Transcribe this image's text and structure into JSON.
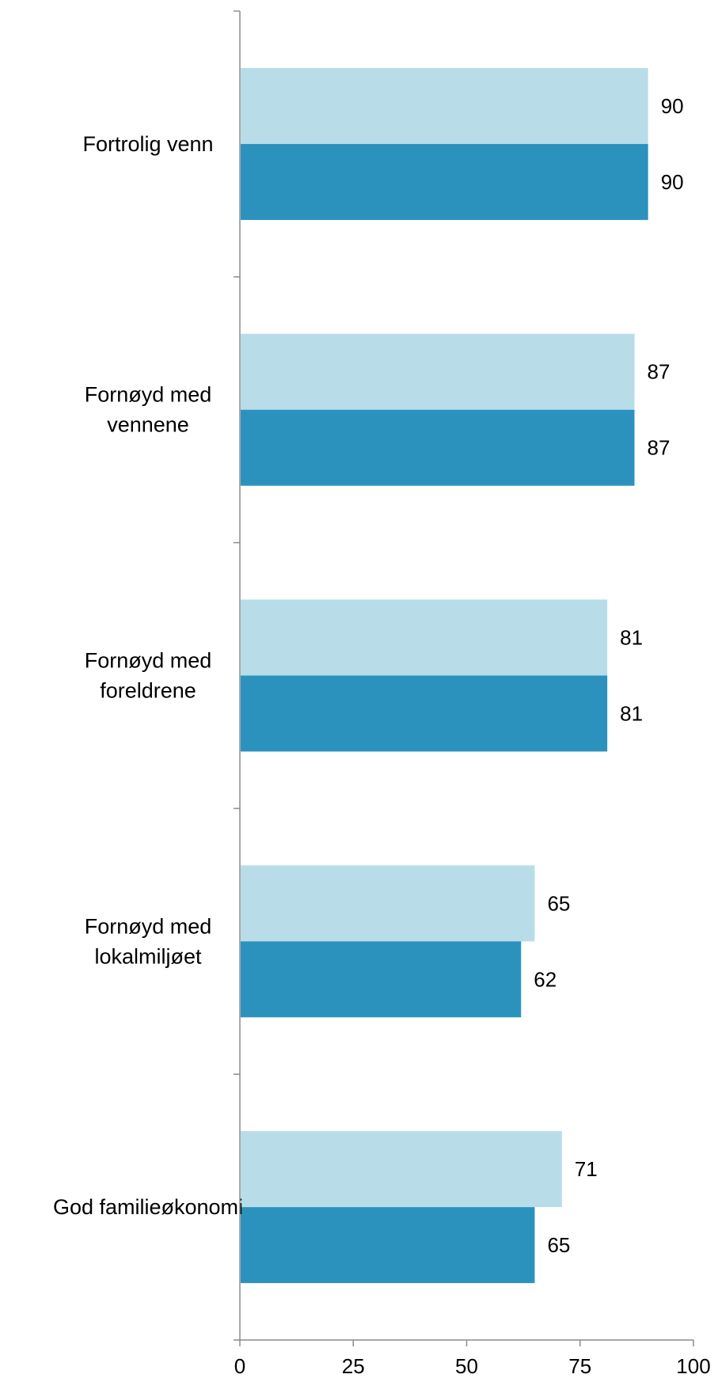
{
  "chart_data": {
    "type": "bar",
    "orientation": "horizontal",
    "categories": [
      [
        "Fortrolig venn"
      ],
      [
        "Fornøyd med",
        "vennene"
      ],
      [
        "Fornøyd med",
        "foreldrene"
      ],
      [
        "Fornøyd med",
        "lokalmiljøet"
      ],
      [
        "God familieøkonomi"
      ]
    ],
    "series": [
      {
        "color": "#b8dde8",
        "values": [
          90,
          87,
          81,
          65,
          71
        ]
      },
      {
        "color": "#2b92bd",
        "values": [
          90,
          87,
          81,
          62,
          65
        ]
      }
    ],
    "xlim": [
      0,
      100
    ],
    "xticks": [
      "0",
      "25",
      "50",
      "75",
      "100"
    ],
    "data_labels": true,
    "grid": false,
    "legend": false
  }
}
